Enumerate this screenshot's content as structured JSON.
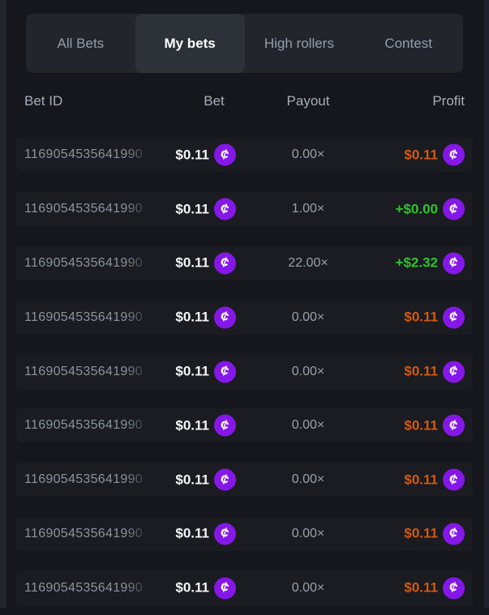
{
  "tabs": {
    "items": [
      {
        "label": "All Bets",
        "active": false
      },
      {
        "label": "My bets",
        "active": true
      },
      {
        "label": "High rollers",
        "active": false
      },
      {
        "label": "Contest",
        "active": false
      }
    ]
  },
  "table": {
    "headers": {
      "bet_id": "Bet ID",
      "bet": "Bet",
      "payout": "Payout",
      "profit": "Profit"
    },
    "currency_icon": {
      "name": "coin-icon",
      "glyph": "¢",
      "color": "#8518e8"
    },
    "rows": [
      {
        "bet_id": "1169054535641990",
        "bet": "$0.11",
        "payout": "0.00×",
        "profit": "$0.11"
      },
      {
        "bet_id": "1169054535641990",
        "bet": "$0.11",
        "payout": "1.00×",
        "profit": "+$0.00"
      },
      {
        "bet_id": "1169054535641990",
        "bet": "$0.11",
        "payout": "22.00×",
        "profit": "+$2.32"
      },
      {
        "bet_id": "1169054535641990",
        "bet": "$0.11",
        "payout": "0.00×",
        "profit": "$0.11"
      },
      {
        "bet_id": "1169054535641990",
        "bet": "$0.11",
        "payout": "0.00×",
        "profit": "$0.11"
      },
      {
        "bet_id": "1169054535641990",
        "bet": "$0.11",
        "payout": "0.00×",
        "profit": "$0.11"
      },
      {
        "bet_id": "1169054535641990",
        "bet": "$0.11",
        "payout": "0.00×",
        "profit": "$0.11"
      },
      {
        "bet_id": "1169054535641990",
        "bet": "$0.11",
        "payout": "0.00×",
        "profit": "$0.11"
      },
      {
        "bet_id": "1169054535641990",
        "bet": "$0.11",
        "payout": "0.00×",
        "profit": "$0.11"
      }
    ]
  },
  "colors": {
    "background": "#15171c",
    "tabbar_background": "#22252c",
    "active_tab_background": "#2d3138",
    "profit_positive": "#2fc42e",
    "profit_negative": "#d4590e",
    "coin_purple": "#8518e8"
  }
}
